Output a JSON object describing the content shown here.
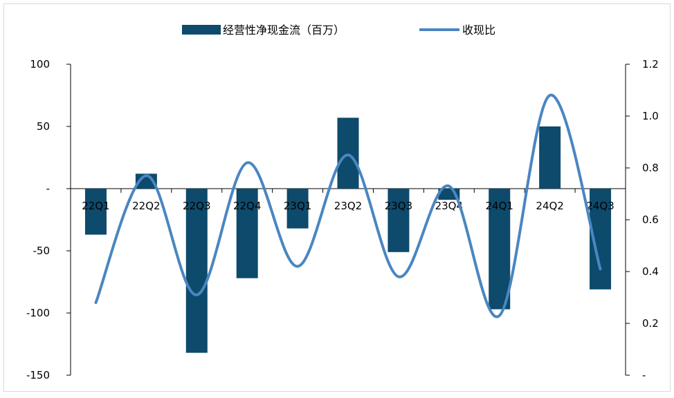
{
  "chart_data": {
    "type": "bar",
    "categories": [
      "22Q1",
      "22Q2",
      "22Q3",
      "22Q4",
      "23Q1",
      "23Q2",
      "23Q3",
      "23Q4",
      "24Q1",
      "24Q2",
      "24Q3"
    ],
    "series": [
      {
        "name": "经营性净现金流（百万）",
        "type": "bar",
        "axis": "left",
        "values": [
          -37,
          12,
          -132,
          -72,
          -32,
          57,
          -51,
          -9,
          -97,
          50,
          -81
        ],
        "color": "#0d4a6b"
      },
      {
        "name": "收现比",
        "type": "line",
        "axis": "right",
        "smooth": true,
        "values": [
          0.28,
          0.77,
          0.31,
          0.82,
          0.42,
          0.85,
          0.38,
          0.73,
          0.23,
          1.08,
          0.41
        ],
        "color": "#4a86c1"
      }
    ],
    "y_left": {
      "ylim": [
        -150,
        100
      ],
      "ticks": [
        "100",
        "50",
        "-",
        "-50",
        "-100",
        "-150"
      ],
      "tick_values": [
        100,
        50,
        0,
        -50,
        -100,
        -150
      ]
    },
    "y_right": {
      "ylim": [
        0,
        1.2
      ],
      "ticks": [
        "1.2",
        "1.0",
        "0.8",
        "0.6",
        "0.4",
        "0.2",
        "-"
      ],
      "tick_values": [
        1.2,
        1.0,
        0.8,
        0.6,
        0.4,
        0.2,
        0
      ]
    },
    "grid": false,
    "legend": "top-center"
  }
}
